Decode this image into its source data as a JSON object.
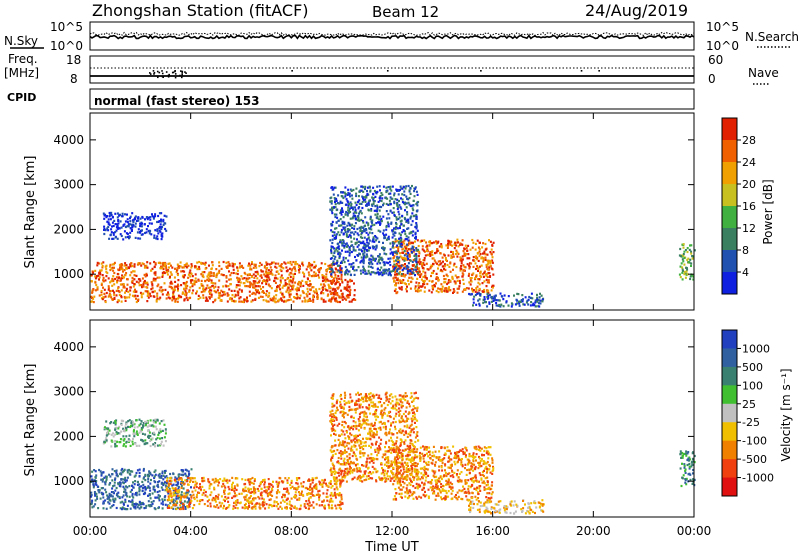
{
  "header": {
    "station": "Zhongshan Station (fitACF)",
    "beam": "Beam 12",
    "date": "24/Aug/2019"
  },
  "left_labels": {
    "nsky": "N.Sky",
    "freq": "Freq.",
    "freq_unit": "[MHz]",
    "cpid": "CPID"
  },
  "right_labels": {
    "nsearch": "N.Search",
    "nave": "Nave"
  },
  "cpid_text": "normal (fast stereo) 153",
  "noise_panel": {
    "left_ticks": [
      "10^5",
      "10^0"
    ],
    "right_ticks": [
      "10^5",
      "10^0"
    ]
  },
  "freq_panel": {
    "left_ticks": [
      "18",
      "8"
    ],
    "right_ticks": [
      "60",
      "0"
    ]
  },
  "x_axis": {
    "label": "Time UT",
    "ticks": [
      "00:00",
      "04:00",
      "08:00",
      "12:00",
      "16:00",
      "20:00",
      "00:00"
    ]
  },
  "y_axis": {
    "label": "Slant Range [km]",
    "ticks": [
      "1000",
      "2000",
      "3000",
      "4000"
    ]
  },
  "power_scale": {
    "label": "Power [dB]",
    "ticks": [
      "4",
      "8",
      "12",
      "16",
      "20",
      "24",
      "28"
    ],
    "colors": [
      "#1020e0",
      "#2050b0",
      "#3a8060",
      "#40b040",
      "#c8c020",
      "#f0a000",
      "#f06000",
      "#e02000"
    ]
  },
  "velocity_scale": {
    "label": "Velocity [m s⁻¹]",
    "ticks": [
      "1000",
      "500",
      "100",
      "25",
      "-25",
      "-100",
      "-500",
      "-1000"
    ],
    "colors": [
      "#2040c0",
      "#3060a0",
      "#3a8070",
      "#40c030",
      "#c0c0c0",
      "#f0c000",
      "#f08000",
      "#f04010",
      "#e01010"
    ]
  },
  "chart_data": [
    {
      "type": "heatmap",
      "title": "",
      "xlabel": "Time UT",
      "ylabel": "Slant Range [km]",
      "xlim": [
        "00:00",
        "24:00"
      ],
      "ylim": [
        200,
        4600
      ],
      "colorbar": "Power [dB]",
      "scatter_regions": [
        {
          "t": [
            0,
            10
          ],
          "range": [
            400,
            1300
          ],
          "level": 6
        },
        {
          "t": [
            9.5,
            10.5
          ],
          "range": [
            400,
            900
          ],
          "level": 7
        },
        {
          "t": [
            12,
            16
          ],
          "range": [
            600,
            1800
          ],
          "level": 6
        },
        {
          "t": [
            15,
            18
          ],
          "range": [
            300,
            600
          ],
          "level": 1
        },
        {
          "t": [
            9.5,
            13
          ],
          "range": [
            1000,
            3000
          ],
          "level": 1
        },
        {
          "t": [
            0.5,
            3
          ],
          "range": [
            1800,
            2400
          ],
          "level": 0
        },
        {
          "t": [
            23.4,
            24
          ],
          "range": [
            900,
            1700
          ],
          "level": 3
        }
      ]
    },
    {
      "type": "heatmap",
      "title": "",
      "xlabel": "Time UT",
      "ylabel": "Slant Range [km]",
      "xlim": [
        "00:00",
        "24:00"
      ],
      "ylim": [
        200,
        4600
      ],
      "colorbar": "Velocity [m s^-1]",
      "scatter_regions": [
        {
          "t": [
            0,
            4
          ],
          "range": [
            400,
            1300
          ],
          "level": 1
        },
        {
          "t": [
            3,
            10
          ],
          "range": [
            400,
            1100
          ],
          "level": 6
        },
        {
          "t": [
            9.5,
            13
          ],
          "range": [
            1000,
            3000
          ],
          "level": 6
        },
        {
          "t": [
            12,
            16
          ],
          "range": [
            600,
            1800
          ],
          "level": 6
        },
        {
          "t": [
            15,
            18
          ],
          "range": [
            300,
            600
          ],
          "level": 5
        },
        {
          "t": [
            0.5,
            3
          ],
          "range": [
            1800,
            2400
          ],
          "level": 3
        },
        {
          "t": [
            23.4,
            24
          ],
          "range": [
            900,
            1700
          ],
          "level": 2
        }
      ]
    }
  ]
}
